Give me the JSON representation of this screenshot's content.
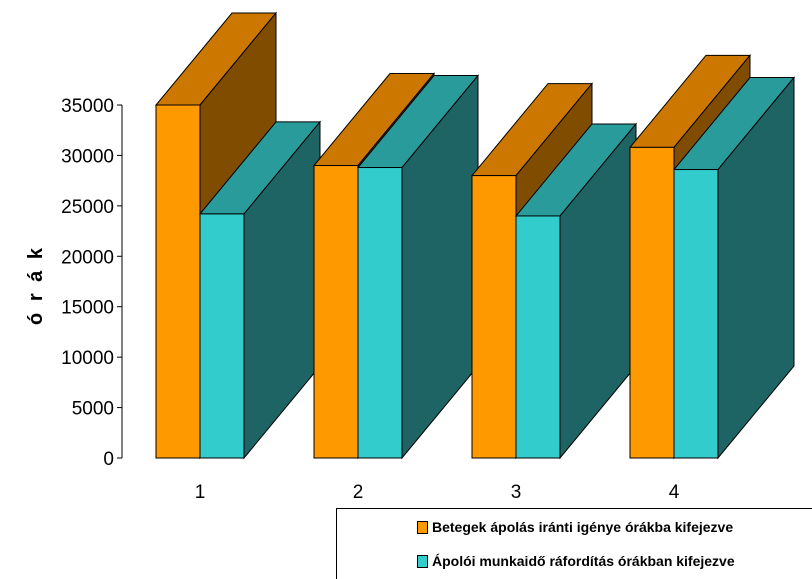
{
  "chart_data": {
    "type": "bar",
    "title": "",
    "xlabel": "",
    "ylabel": "ó r á k",
    "ylim": [
      0,
      35000
    ],
    "yticks": [
      0,
      5000,
      10000,
      15000,
      20000,
      25000,
      30000,
      35000
    ],
    "categories": [
      "1",
      "2",
      "3",
      "4"
    ],
    "series": [
      {
        "name": "Betegek ápolás iránti igénye órákba kifejezve",
        "values": [
          35000,
          29000,
          28000,
          30800
        ],
        "color": "#ff9900",
        "top_color": "#cc7700",
        "side_color": "#804c00"
      },
      {
        "name": "Ápolói munkaidő ráfordítás órákban kifejezve",
        "values": [
          24200,
          28800,
          24000,
          28600
        ],
        "color": "#33cccc",
        "top_color": "#2a9b9b",
        "side_color": "#1f6464"
      }
    ],
    "grid": false,
    "legend_position": "bottom-right"
  }
}
